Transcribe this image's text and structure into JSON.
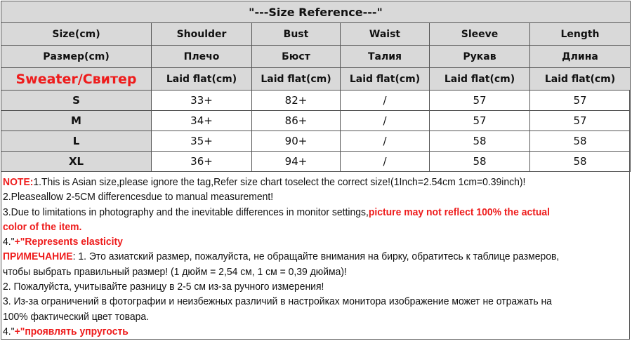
{
  "title": "\"---Size Reference---\"",
  "header_en": [
    "Size(cm)",
    "Shoulder",
    "Bust",
    "Waist",
    "Sleeve",
    "Length"
  ],
  "header_ru": [
    "Размер(cm)",
    "Плечо",
    "Бюст",
    "Талия",
    "Рукав",
    "Длина"
  ],
  "header_method": [
    "Sweater/Свитер",
    "Laid flat(cm)",
    "Laid flat(cm)",
    "Laid flat(cm)",
    "Laid flat(cm)",
    "Laid flat(cm)"
  ],
  "rows": [
    [
      "S",
      "33+",
      "82+",
      "/",
      "57",
      "57"
    ],
    [
      "M",
      "34+",
      "86+",
      "/",
      "57",
      "57"
    ],
    [
      "L",
      "35+",
      "90+",
      "/",
      "58",
      "58"
    ],
    [
      "XL",
      "36+",
      "94+",
      "/",
      "58",
      "58"
    ]
  ],
  "accent_color": "#ee1c1c",
  "header_bg": "#d9d9d9",
  "notes": {
    "note_label": "NOTE:",
    "note1": "1.This is Asian size,please ignore the tag,Refer size chart toselect the correct size!(1Inch=2.54cm 1cm=0.39inch)!",
    "note2": "2.Pleaseallow 2-5CM differencesdue to manual measurement!",
    "note3_plain": "3.Due to limitations in photography and the inevitable differences in monitor settings,",
    "note3_red_a": "picture may not reflect 100% the actual",
    "note3_red_b": "color of the item.",
    "note4_prefix": "4.\"",
    "note4_red": "+\"Represents elasticity",
    "ru_label": "ПРИМЕЧАНИЕ",
    "ru1a": ": 1. Это азиатский размер, пожалуйста, не обращайте внимания на бирку, обратитесь к таблице размеров,",
    "ru1b": "чтобы выбрать правильный размер! (1 дюйм = 2,54 см, 1 см = 0,39 дюйма)!",
    "ru2": "2. Пожалуйста, учитывайте разницу в 2-5 см из-за ручного измерения!",
    "ru3a": "3. Из-за ограничений в фотографии и неизбежных различий в настройках монитора изображение может не отражать на",
    "ru3b": "100% фактический цвет товара.",
    "ru4_prefix": "4.\"",
    "ru4_red": "+\"проявлять упругость"
  }
}
